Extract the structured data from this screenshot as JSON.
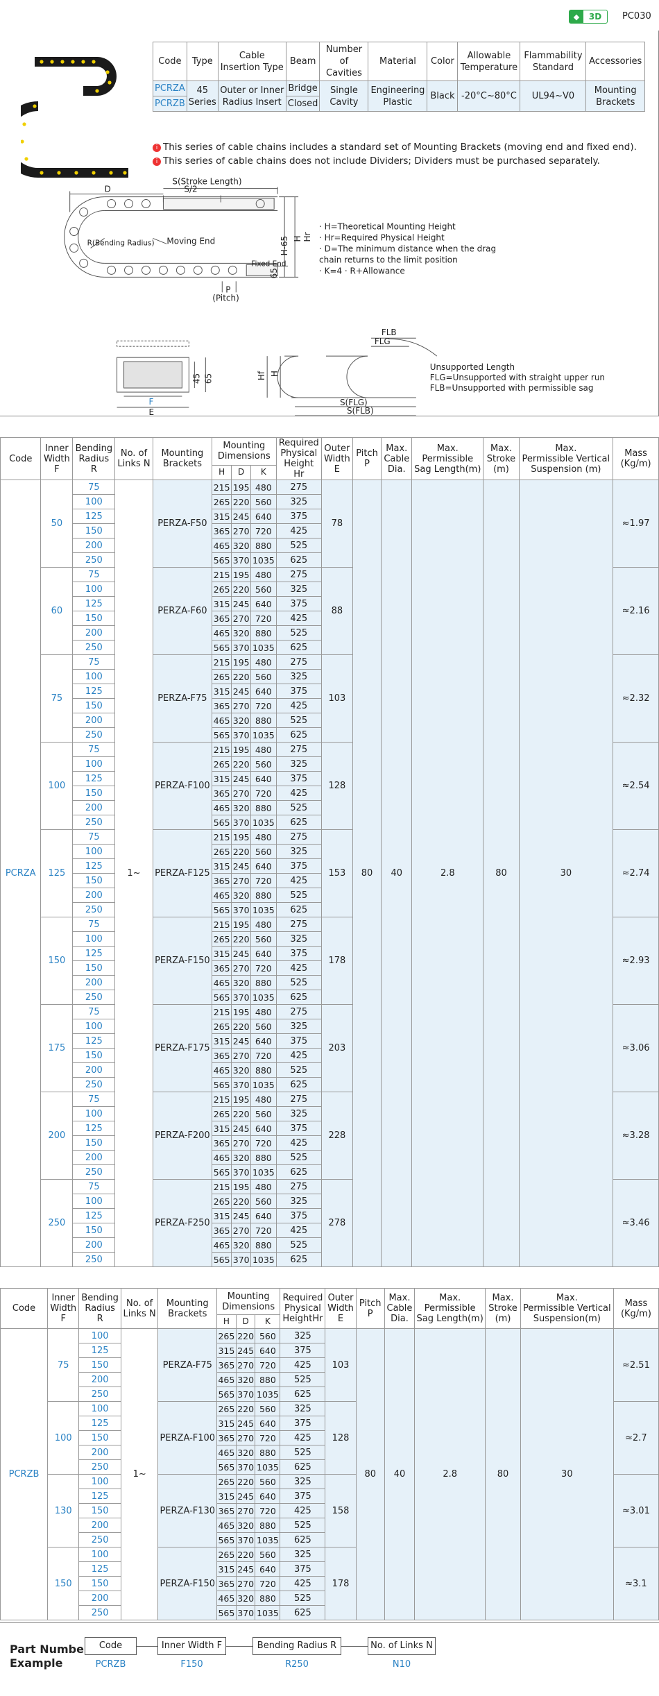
{
  "header": {
    "badge": "3D",
    "page_code": "PC030"
  },
  "spec": {
    "headers": [
      "Code",
      "Type",
      "Cable\nInsertion Type",
      "Beam",
      "Number\nof Cavities",
      "Material",
      "Color",
      "Allowable\nTemperature",
      "Flammability\nStandard",
      "Accessories"
    ],
    "codes": [
      "PCRZA",
      "PCRZB"
    ],
    "type": "45\nSeries",
    "insertion": "Outer or Inner\nRadius Insert",
    "beams": [
      "Bridge",
      "Closed"
    ],
    "cavities": "Single\nCavity",
    "material": "Engineering\nPlastic",
    "color": "Black",
    "temperature": "-20°C~80°C",
    "flammability": "UL94~V0",
    "accessories": "Mounting\nBrackets"
  },
  "notes": [
    "This series of cable chains includes a standard set of Mounting Brackets (moving end and fixed end).",
    "This series of cable chains does not include Dividers; Dividers must be purchased separately."
  ],
  "diagram": {
    "stroke": "S(Stroke Length)",
    "half": "S/2",
    "d": "D",
    "bending": "R(Bending Radius)",
    "moving_end": "Moving End",
    "fixed_end": "Fixed End",
    "h65": "H-65",
    "h": "H",
    "hr": "Hr",
    "p": "P",
    "pitch": "(Pitch)",
    "d65": "65",
    "legend": [
      "· H=Theoretical Mounting Height",
      "· Hr=Required Physical Height",
      "· D=The minimum distance when the drag",
      "   chain returns to the limit position",
      "· K=4 · R+Allowance"
    ],
    "f": "F",
    "e": "E",
    "d45": "45",
    "d65b": "65",
    "flb": "FLB",
    "flg": "FLG",
    "hf": "Hf",
    "h2": "H",
    "sflg": "S(FLG)",
    "sflb": "S(FLB)",
    "unsupported": [
      "Unsupported Length",
      "FLG=Unsupported with straight upper run",
      "FLB=Unsupported with permissible sag"
    ]
  },
  "table_a": {
    "headers": [
      "Code",
      "Inner\nWidth F",
      "Bending\nRadius R",
      "No. of\nLinks N",
      "Mounting\nBrackets",
      "Mounting\nDimensions",
      "Required\nPhysical\nHeight Hr",
      "Outer\nWidth\nE",
      "Pitch\nP",
      "Max.\nCable\nDia.",
      "Max.\nPermissible\nSag Length(m)",
      "Max.\nStroke\n(m)",
      "Max.\nPermissible Vertical\nSuspension (m)",
      "Mass\n(Kg/m)"
    ],
    "dim_sub": [
      "H",
      "D",
      "K"
    ],
    "code": "PCRZA",
    "links": "1~",
    "pitch": "80",
    "cable": "40",
    "sag": "2.8",
    "stroke": "80",
    "susp": "30",
    "radii": [
      "75",
      "100",
      "125",
      "150",
      "200",
      "250"
    ],
    "dims": [
      [
        "215",
        "195",
        "480",
        "275"
      ],
      [
        "265",
        "220",
        "560",
        "325"
      ],
      [
        "315",
        "245",
        "640",
        "375"
      ],
      [
        "365",
        "270",
        "720",
        "425"
      ],
      [
        "465",
        "320",
        "880",
        "525"
      ],
      [
        "565",
        "370",
        "1035",
        "625"
      ]
    ],
    "groups": [
      {
        "width": "50",
        "bracket": "PERZA-F50",
        "outer": "78",
        "mass": "≈1.97"
      },
      {
        "width": "60",
        "bracket": "PERZA-F60",
        "outer": "88",
        "mass": "≈2.16"
      },
      {
        "width": "75",
        "bracket": "PERZA-F75",
        "outer": "103",
        "mass": "≈2.32"
      },
      {
        "width": "100",
        "bracket": "PERZA-F100",
        "outer": "128",
        "mass": "≈2.54"
      },
      {
        "width": "125",
        "bracket": "PERZA-F125",
        "outer": "153",
        "mass": "≈2.74"
      },
      {
        "width": "150",
        "bracket": "PERZA-F150",
        "outer": "178",
        "mass": "≈2.93"
      },
      {
        "width": "175",
        "bracket": "PERZA-F175",
        "outer": "203",
        "mass": "≈3.06"
      },
      {
        "width": "200",
        "bracket": "PERZA-F200",
        "outer": "228",
        "mass": "≈3.28"
      },
      {
        "width": "250",
        "bracket": "PERZA-F250",
        "outer": "278",
        "mass": "≈3.46"
      }
    ]
  },
  "table_b": {
    "headers": [
      "Code",
      "Inner\nWidth F",
      "Bending\nRadius R",
      "No. of\nLinks N",
      "Mounting\nBrackets",
      "Mounting\nDimensions",
      "Required\nPhysical\nHeightHr",
      "Outer\nWidth\nE",
      "Pitch\nP",
      "Max.\nCable\nDia.",
      "Max.\nPermissible\nSag Length(m)",
      "Max.\nStroke\n(m)",
      "Max.\nPermissible Vertical\nSuspension(m)",
      "Mass\n(Kg/m)"
    ],
    "dim_sub": [
      "H",
      "D",
      "K"
    ],
    "code": "PCRZB",
    "links": "1~",
    "pitch": "80",
    "cable": "40",
    "sag": "2.8",
    "stroke": "80",
    "susp": "30",
    "radii": [
      "100",
      "125",
      "150",
      "200",
      "250"
    ],
    "dims": [
      [
        "265",
        "220",
        "560",
        "325"
      ],
      [
        "315",
        "245",
        "640",
        "375"
      ],
      [
        "365",
        "270",
        "720",
        "425"
      ],
      [
        "465",
        "320",
        "880",
        "525"
      ],
      [
        "565",
        "370",
        "1035",
        "625"
      ]
    ],
    "groups": [
      {
        "width": "75",
        "bracket": "PERZA-F75",
        "outer": "103",
        "mass": "≈2.51"
      },
      {
        "width": "100",
        "bracket": "PERZA-F100",
        "outer": "128",
        "mass": "≈2.7"
      },
      {
        "width": "130",
        "bracket": "PERZA-F130",
        "outer": "158",
        "mass": "≈3.01"
      },
      {
        "width": "150",
        "bracket": "PERZA-F150",
        "outer": "178",
        "mass": "≈3.1"
      }
    ]
  },
  "part_number": {
    "label": "Part Number\nExample",
    "fields": [
      "Code",
      "Inner Width F",
      "Bending Radius R",
      "No. of Links N"
    ],
    "values": [
      "PCRZB",
      "F150",
      "R250",
      "N10"
    ]
  }
}
